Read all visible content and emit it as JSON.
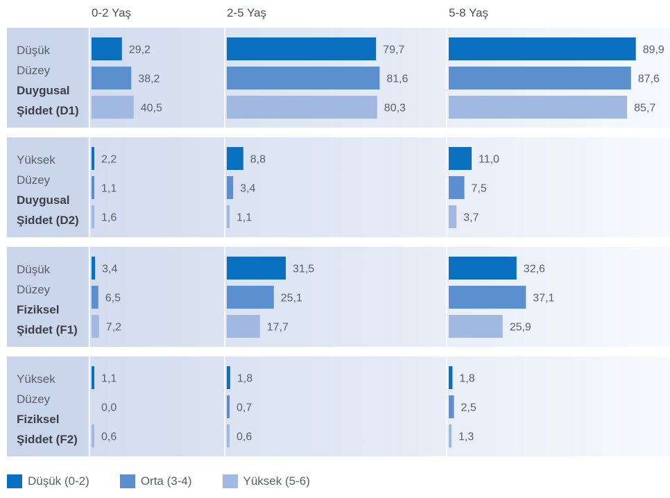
{
  "chart_data": {
    "type": "bar",
    "orientation": "horizontal",
    "columns": [
      "0-2 Yaş",
      "2-5 Yaş",
      "5-8 Yaş"
    ],
    "groups": [
      {
        "lines": [
          "Düşük",
          "Düzey",
          "Duygusal",
          "Şiddet (D1)"
        ],
        "bold_from": 2
      },
      {
        "lines": [
          "Yüksek",
          "Düzey",
          "Duygusal",
          "Şiddet (D2)"
        ],
        "bold_from": 2
      },
      {
        "lines": [
          "Düşük",
          "Düzey",
          "Fiziksel",
          "Şiddet (F1)"
        ],
        "bold_from": 2
      },
      {
        "lines": [
          "Yüksek",
          "Düzey",
          "Fiziksel",
          "Şiddet (F2)"
        ],
        "bold_from": 2
      }
    ],
    "series": [
      {
        "name": "Düşük (0-2)",
        "color": "#0b6fc0",
        "values": [
          [
            29.2,
            79.7,
            89.9
          ],
          [
            2.2,
            8.8,
            11.0
          ],
          [
            3.4,
            31.5,
            32.6
          ],
          [
            1.1,
            1.8,
            1.8
          ]
        ],
        "labels": [
          [
            "29,2",
            "79,7",
            "89,9"
          ],
          [
            "2,2",
            "8,8",
            "11,0"
          ],
          [
            "3,4",
            "31,5",
            "32,6"
          ],
          [
            "1,1",
            "1,8",
            "1,8"
          ]
        ]
      },
      {
        "name": "Orta (3-4)",
        "color": "#5b8fd0",
        "values": [
          [
            38.2,
            81.6,
            87.6
          ],
          [
            1.1,
            3.4,
            7.5
          ],
          [
            6.5,
            25.1,
            37.1
          ],
          [
            0.0,
            0.7,
            2.5
          ]
        ],
        "labels": [
          [
            "38,2",
            "81,6",
            "87,6"
          ],
          [
            "1,1",
            "3,4",
            "7,5"
          ],
          [
            "6,5",
            "25,1",
            "37,1"
          ],
          [
            "0,0",
            "0,7",
            "2,5"
          ]
        ]
      },
      {
        "name": "Yüksek (5-6)",
        "color": "#a1b9e0",
        "values": [
          [
            40.5,
            80.3,
            85.7
          ],
          [
            1.6,
            1.1,
            3.7
          ],
          [
            7.2,
            17.7,
            25.9
          ],
          [
            0.6,
            0.6,
            1.3
          ]
        ],
        "labels": [
          [
            "40,5",
            "80,3",
            "85,7"
          ],
          [
            "1,6",
            "1,1",
            "3,7"
          ],
          [
            "7,2",
            "17,7",
            "25,9"
          ],
          [
            "0,6",
            "0,6",
            "1,3"
          ]
        ]
      }
    ],
    "xlim": [
      0,
      100
    ],
    "legend_position": "bottom-left"
  },
  "legend": [
    {
      "label": "Düşük (0-2)",
      "color": "#0b6fc0"
    },
    {
      "label": "Orta (3-4)",
      "color": "#5b8fd0"
    },
    {
      "label": "Yüksek (5-6)",
      "color": "#a1b9e0"
    }
  ]
}
